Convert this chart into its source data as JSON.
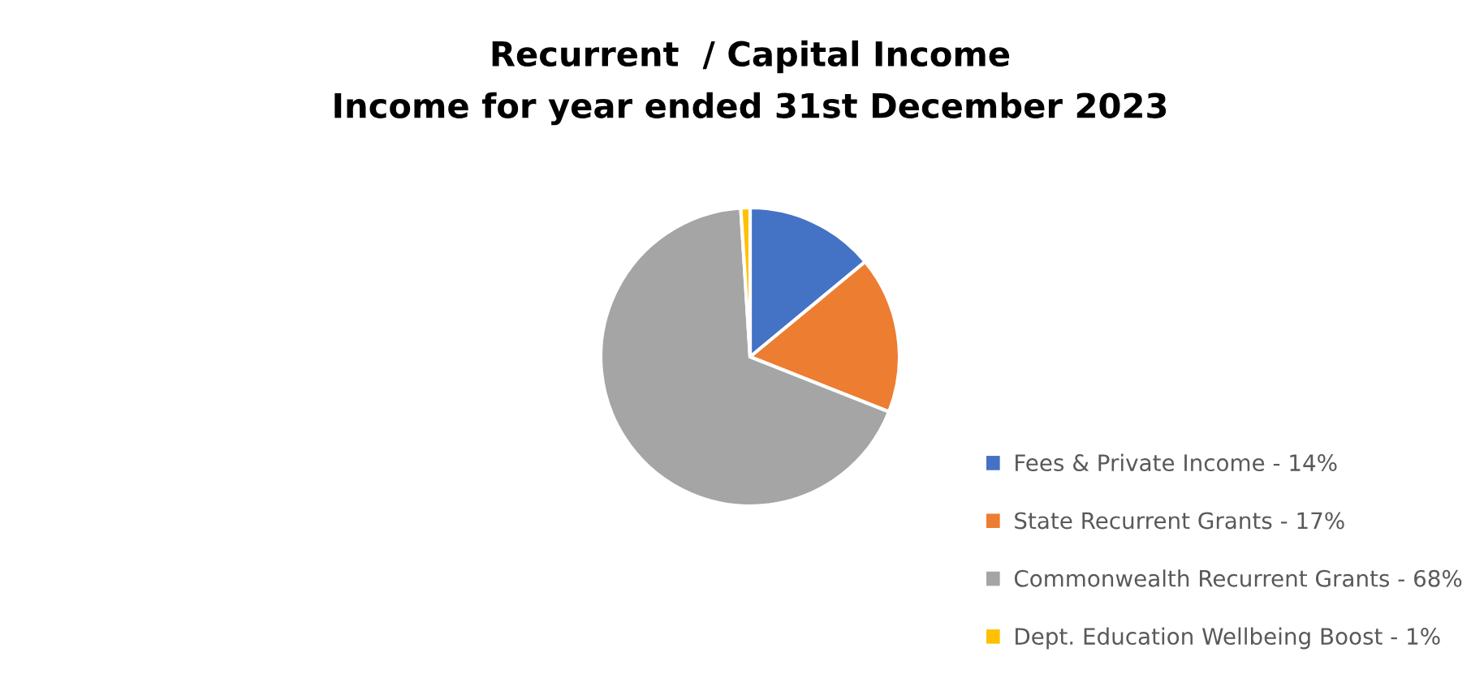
{
  "chart_data": {
    "type": "pie",
    "title": "Recurrent  / Capital Income",
    "subtitle": "Income for year ended 31st December 2023",
    "categories": [
      "Fees & Private Income - 14%",
      "State Recurrent Grants - 17%",
      "Commonwealth Recurrent Grants - 68%",
      "Dept. Education Wellbeing Boost - 1%"
    ],
    "values": [
      14,
      17,
      68,
      1
    ],
    "colors": [
      "#4472c4",
      "#ed7d31",
      "#a5a5a5",
      "#ffc000"
    ],
    "legend": "right"
  }
}
